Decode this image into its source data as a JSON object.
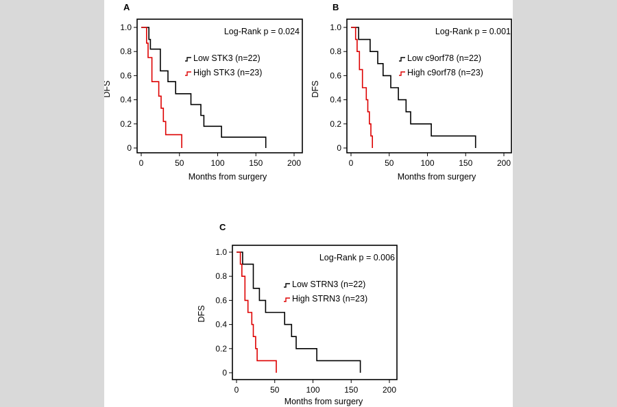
{
  "chart_data": [
    {
      "type": "line",
      "panel_label": "A",
      "title": "Log-Rank p = 0.024",
      "xlabel": "Months from surgery",
      "ylabel": "DFS",
      "xlim": [
        0,
        200
      ],
      "ylim": [
        0,
        1.0
      ],
      "x_ticks": [
        0,
        50,
        100,
        150,
        200
      ],
      "x_tick_labels": [
        "0",
        "50",
        "100",
        "150",
        "200"
      ],
      "y_ticks": [
        0,
        0.2,
        0.4,
        0.6,
        0.8,
        1.0
      ],
      "y_tick_labels": [
        "0",
        "0.2",
        "0.4",
        "0.6",
        "0.8",
        "1.0"
      ],
      "legend_position": "top-right",
      "series": [
        {
          "name": "Low STK3 (n=22)",
          "color": "#000000",
          "x": [
            0,
            10,
            10,
            12,
            12,
            25,
            25,
            35,
            35,
            45,
            45,
            65,
            65,
            78,
            78,
            82,
            82,
            105,
            105,
            163,
            163
          ],
          "y": [
            1.0,
            1.0,
            0.9,
            0.9,
            0.82,
            0.82,
            0.64,
            0.64,
            0.55,
            0.55,
            0.45,
            0.45,
            0.36,
            0.36,
            0.27,
            0.27,
            0.18,
            0.18,
            0.09,
            0.09,
            0.0
          ]
        },
        {
          "name": "High STK3 (n=23)",
          "color": "#dd0000",
          "x": [
            0,
            7,
            7,
            9,
            9,
            14,
            14,
            23,
            23,
            26,
            26,
            29,
            29,
            32,
            32,
            53,
            53
          ],
          "y": [
            1.0,
            1.0,
            0.87,
            0.87,
            0.75,
            0.75,
            0.55,
            0.55,
            0.43,
            0.43,
            0.33,
            0.33,
            0.22,
            0.22,
            0.11,
            0.11,
            0.0
          ]
        }
      ]
    },
    {
      "type": "line",
      "panel_label": "B",
      "title": "Log-Rank p = 0.001",
      "xlabel": "Months from surgery",
      "ylabel": "DFS",
      "xlim": [
        0,
        200
      ],
      "ylim": [
        0,
        1.0
      ],
      "x_ticks": [
        0,
        50,
        100,
        150,
        200
      ],
      "x_tick_labels": [
        "0",
        "50",
        "100",
        "150",
        "200"
      ],
      "y_ticks": [
        0,
        0.2,
        0.4,
        0.6,
        0.8,
        1.0
      ],
      "y_tick_labels": [
        "0",
        "0.2",
        "0.4",
        "0.6",
        "0.8",
        "1.0"
      ],
      "legend_position": "top-right",
      "series": [
        {
          "name": "Low c9orf78 (n=22)",
          "color": "#000000",
          "x": [
            0,
            10,
            10,
            25,
            25,
            35,
            35,
            42,
            42,
            52,
            52,
            62,
            62,
            72,
            72,
            78,
            78,
            82,
            82,
            105,
            105,
            163,
            163
          ],
          "y": [
            1.0,
            1.0,
            0.9,
            0.9,
            0.8,
            0.8,
            0.7,
            0.7,
            0.6,
            0.6,
            0.5,
            0.5,
            0.4,
            0.4,
            0.3,
            0.3,
            0.2,
            0.2,
            0.2,
            0.2,
            0.1,
            0.1,
            0.0
          ]
        },
        {
          "name": "High c9orf78 (n=23)",
          "color": "#dd0000",
          "x": [
            0,
            6,
            6,
            8,
            8,
            11,
            11,
            15,
            15,
            20,
            20,
            22,
            22,
            24,
            24,
            26,
            26,
            28,
            28
          ],
          "y": [
            1.0,
            1.0,
            0.9,
            0.9,
            0.8,
            0.8,
            0.65,
            0.65,
            0.5,
            0.5,
            0.4,
            0.4,
            0.3,
            0.3,
            0.2,
            0.2,
            0.1,
            0.1,
            0.0
          ]
        }
      ]
    },
    {
      "type": "line",
      "panel_label": "C",
      "title": "Log-Rank p = 0.006",
      "xlabel": "Months from surgery",
      "ylabel": "DFS",
      "xlim": [
        0,
        200
      ],
      "ylim": [
        0,
        1.0
      ],
      "x_ticks": [
        0,
        50,
        100,
        150,
        200
      ],
      "x_tick_labels": [
        "0",
        "50",
        "100",
        "150",
        "200"
      ],
      "y_ticks": [
        0,
        0.2,
        0.4,
        0.6,
        0.8,
        1.0
      ],
      "y_tick_labels": [
        "0",
        "0.2",
        "0.4",
        "0.6",
        "0.8",
        "1.0"
      ],
      "legend_position": "top-right",
      "series": [
        {
          "name": "Low STRN3 (n=22)",
          "color": "#000000",
          "x": [
            0,
            8,
            8,
            22,
            22,
            30,
            30,
            38,
            38,
            48,
            48,
            63,
            63,
            72,
            72,
            78,
            78,
            82,
            82,
            105,
            105,
            162,
            162
          ],
          "y": [
            1.0,
            1.0,
            0.9,
            0.9,
            0.7,
            0.7,
            0.6,
            0.6,
            0.5,
            0.5,
            0.5,
            0.5,
            0.4,
            0.4,
            0.3,
            0.3,
            0.2,
            0.2,
            0.2,
            0.2,
            0.1,
            0.1,
            0.0
          ]
        },
        {
          "name": "High STRN3 (n=23)",
          "color": "#dd0000",
          "x": [
            0,
            5,
            5,
            7,
            7,
            11,
            11,
            15,
            15,
            20,
            20,
            22,
            22,
            25,
            25,
            27,
            27,
            30,
            30,
            52,
            52
          ],
          "y": [
            1.0,
            1.0,
            0.9,
            0.9,
            0.8,
            0.8,
            0.6,
            0.6,
            0.5,
            0.5,
            0.4,
            0.4,
            0.3,
            0.3,
            0.2,
            0.2,
            0.1,
            0.1,
            0.1,
            0.1,
            0.0
          ]
        }
      ]
    }
  ]
}
